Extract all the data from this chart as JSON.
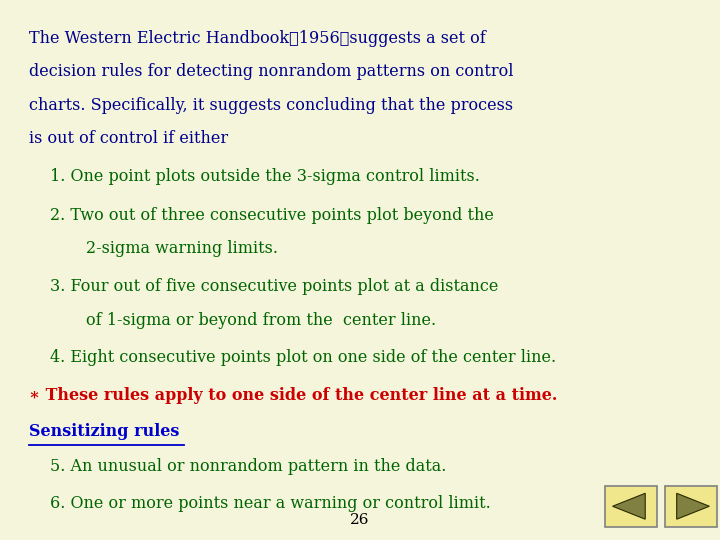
{
  "bg_color": "#f5f5dc",
  "text_color_dark_blue": "#00008B",
  "text_color_green": "#006400",
  "text_color_red": "#CC0000",
  "text_color_blue_underline": "#0000CD",
  "item1": "1. One point plots outside the 3-sigma control limits.",
  "item2_line1": "2. Two out of three consecutive points plot beyond the",
  "item2_line2": "2-sigma warning limits.",
  "item3_line1": "3. Four out of five consecutive points plot at a distance",
  "item3_line2": "of 1-sigma or beyond from the  center line.",
  "item4": "4. Eight consecutive points plot on one side of the center line.",
  "star_note": "∗ These rules apply to one side of the center line at a time.",
  "sensitizing": "Sensitizing rules",
  "item5": "5. An unusual or nonrandom pattern in the data.",
  "item6": "6. One or more points near a warning or control limit.",
  "page_number": "26",
  "arrow_box_color": "#f0e68c",
  "arrow_color": "#808040",
  "para1_lines": [
    "The Western Electric Handbook（1956）suggests a set of",
    "decision rules for detecting nonrandom patterns on control",
    "charts. Specifically, it suggests concluding that the process",
    "is out of control if either"
  ]
}
